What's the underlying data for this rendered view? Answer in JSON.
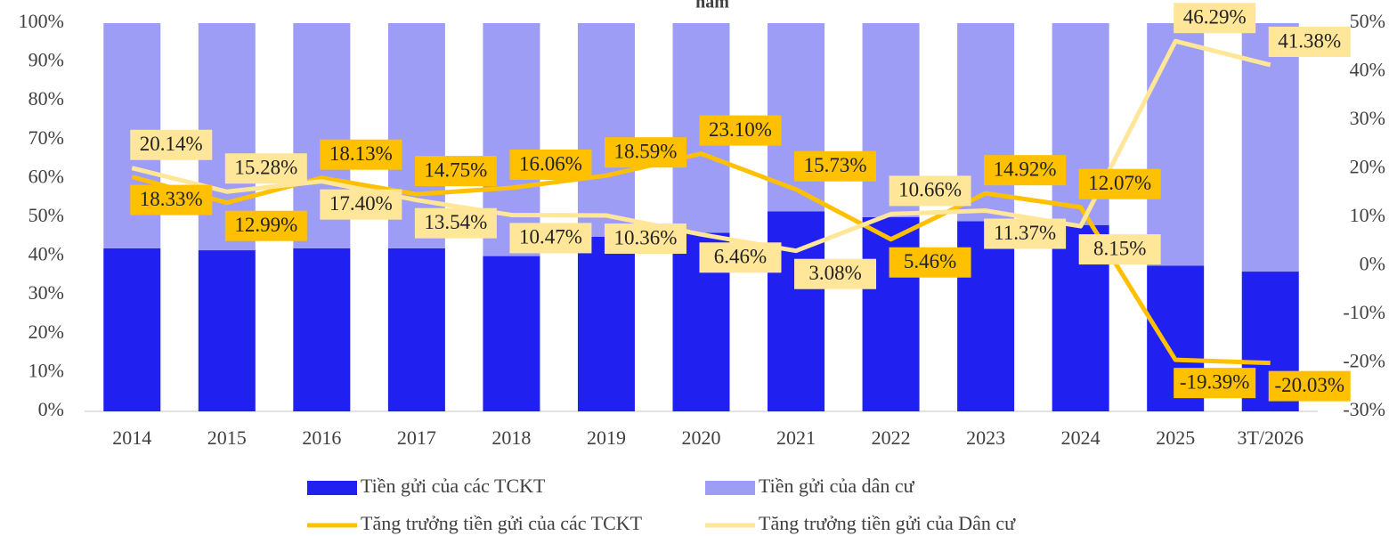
{
  "chart_data": {
    "type": "bar_line",
    "title": "năm",
    "categories": [
      "2014",
      "2015",
      "2016",
      "2017",
      "2018",
      "2019",
      "2020",
      "2021",
      "2022",
      "2023",
      "2024",
      "2025",
      "3T/2026"
    ],
    "series": [
      {
        "name": "Tiền gửi của các TCKT",
        "color": "#2020f0",
        "kind": "bar",
        "values": [
          42,
          41.5,
          42,
          42,
          40,
          45,
          46,
          51.5,
          50,
          49,
          48,
          37.5,
          36
        ]
      },
      {
        "name": "Tiền gửi của dân cư",
        "color": "#9d9df5",
        "kind": "bar",
        "values": [
          58,
          58.5,
          58,
          58,
          60,
          55,
          54,
          48.5,
          50,
          51,
          52,
          62.5,
          64
        ]
      },
      {
        "name": "Tăng trưởng tiền gửi của các TCKT",
        "color": "#ffc000",
        "kind": "line",
        "axis": "y2",
        "values": [
          18.33,
          12.99,
          18.13,
          14.75,
          16.06,
          18.59,
          23.1,
          15.73,
          5.46,
          14.92,
          12.07,
          -19.39,
          -20.03
        ],
        "value_labels": [
          "18.33%",
          "12.99%",
          "18.13%",
          "14.75%",
          "16.06%",
          "18.59%",
          "23.10%",
          "15.73%",
          "5.46%",
          "14.92%",
          "12.07%",
          "-19.39%",
          "-20.03%"
        ]
      },
      {
        "name": "Tăng trưởng tiền gửi của Dân cư",
        "color": "#ffe699",
        "kind": "line",
        "axis": "y2",
        "values": [
          20.14,
          15.28,
          17.4,
          13.54,
          10.47,
          10.36,
          6.46,
          3.08,
          10.66,
          11.37,
          8.15,
          46.29,
          41.38
        ],
        "value_labels": [
          "20.14%",
          "15.28%",
          "17.40%",
          "13.54%",
          "10.47%",
          "10.36%",
          "6.46%",
          "3.08%",
          "10.66%",
          "11.37%",
          "8.15%",
          "46.29%",
          "41.38%"
        ]
      }
    ],
    "ylim": [
      0,
      100
    ],
    "yticks": [
      {
        "value": 0,
        "label": "0%"
      },
      {
        "value": 10,
        "label": "10%"
      },
      {
        "value": 20,
        "label": "20%"
      },
      {
        "value": 30,
        "label": "30%"
      },
      {
        "value": 40,
        "label": "40%"
      },
      {
        "value": 50,
        "label": "50%"
      },
      {
        "value": 60,
        "label": "60%"
      },
      {
        "value": 70,
        "label": "70%"
      },
      {
        "value": 80,
        "label": "80%"
      },
      {
        "value": 90,
        "label": "90%"
      },
      {
        "value": 100,
        "label": "100%"
      }
    ],
    "y2lim": [
      -30,
      50
    ],
    "y2ticks": [
      {
        "value": -30,
        "label": "-30%"
      },
      {
        "value": -20,
        "label": "-20%"
      },
      {
        "value": -10,
        "label": "-10%"
      },
      {
        "value": 0,
        "label": "0%"
      },
      {
        "value": 10,
        "label": "10%"
      },
      {
        "value": 20,
        "label": "20%"
      },
      {
        "value": 30,
        "label": "30%"
      },
      {
        "value": 40,
        "label": "40%"
      },
      {
        "value": 50,
        "label": "50%"
      }
    ],
    "legend": "bottom"
  }
}
